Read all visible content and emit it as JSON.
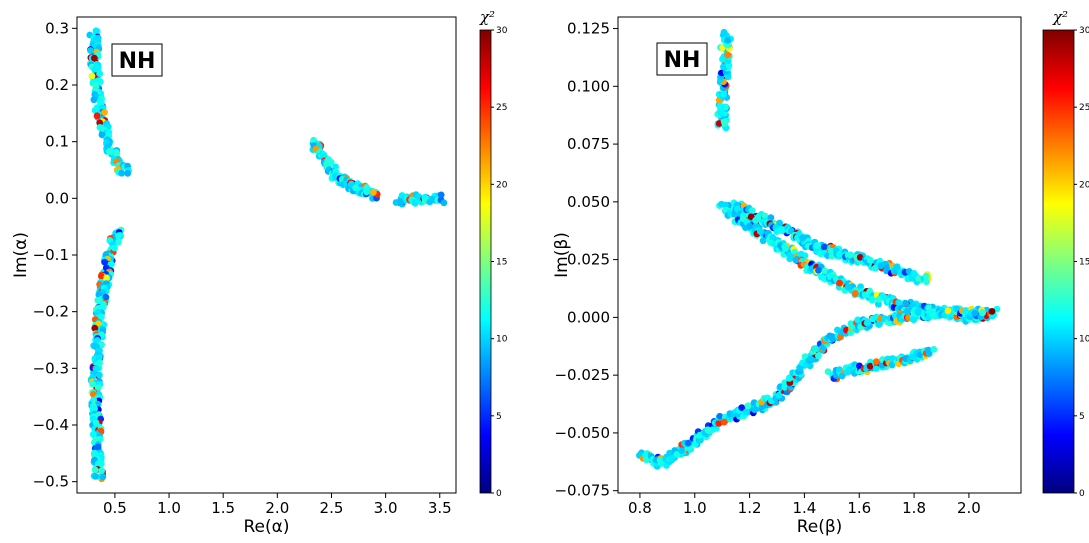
{
  "chart_data": [
    {
      "type": "scatter",
      "title": "",
      "annotation": "NH",
      "xlabel": "Re(α)",
      "ylabel": "Im(α)",
      "xlim": [
        0.15,
        3.65
      ],
      "ylim": [
        -0.52,
        0.32
      ],
      "xticks": [
        "0.5",
        "1.0",
        "1.5",
        "2.0",
        "2.5",
        "3.0",
        "3.5"
      ],
      "xtick_values": [
        0.5,
        1.0,
        1.5,
        2.0,
        2.5,
        3.0,
        3.5
      ],
      "yticks": [
        "0.3",
        "0.2",
        "0.1",
        "0.0",
        "−0.1",
        "−0.2",
        "−0.3",
        "−0.4",
        "−0.5"
      ],
      "ytick_values": [
        0.3,
        0.2,
        0.1,
        0.0,
        -0.1,
        -0.2,
        -0.3,
        -0.4,
        -0.5
      ],
      "grid": false,
      "colormap": "jet",
      "color_variable": "χ²",
      "clim": [
        0,
        30
      ],
      "colorbar_ticks": [
        "30",
        "25",
        "20",
        "15",
        "10",
        "5",
        "0"
      ],
      "colorbar_tick_values": [
        30,
        25,
        20,
        15,
        10,
        5,
        0
      ],
      "clusters": [
        {
          "name": "upper-left arc",
          "path": [
            [
              0.31,
              0.295
            ],
            [
              0.31,
              0.24
            ],
            [
              0.33,
              0.19
            ],
            [
              0.37,
              0.14
            ],
            [
              0.43,
              0.1
            ],
            [
              0.52,
              0.065
            ],
            [
              0.6,
              0.045
            ]
          ]
        },
        {
          "name": "lower-left arc",
          "path": [
            [
              0.55,
              -0.06
            ],
            [
              0.48,
              -0.08
            ],
            [
              0.43,
              -0.12
            ],
            [
              0.38,
              -0.18
            ],
            [
              0.34,
              -0.25
            ],
            [
              0.32,
              -0.32
            ],
            [
              0.33,
              -0.4
            ],
            [
              0.35,
              -0.495
            ]
          ]
        },
        {
          "name": "middle arc",
          "path": [
            [
              2.34,
              0.1
            ],
            [
              2.45,
              0.065
            ],
            [
              2.56,
              0.035
            ],
            [
              2.7,
              0.02
            ],
            [
              2.85,
              0.01
            ],
            [
              2.92,
              0.005
            ]
          ]
        },
        {
          "name": "right band",
          "path": [
            [
              3.12,
              -0.004
            ],
            [
              3.3,
              -0.001
            ],
            [
              3.52,
              0.0
            ]
          ]
        }
      ]
    },
    {
      "type": "scatter",
      "title": "",
      "annotation": "NH",
      "xlabel": "Re(β)",
      "ylabel": "Im(β)",
      "xlim": [
        0.72,
        2.19
      ],
      "ylim": [
        -0.076,
        0.13
      ],
      "xticks": [
        "0.8",
        "1.0",
        "1.2",
        "1.4",
        "1.6",
        "1.8",
        "2.0"
      ],
      "xtick_values": [
        0.8,
        1.0,
        1.2,
        1.4,
        1.6,
        1.8,
        2.0
      ],
      "yticks": [
        "0.125",
        "0.100",
        "0.075",
        "0.050",
        "0.025",
        "0.000",
        "−0.025",
        "−0.050",
        "−0.075"
      ],
      "ytick_values": [
        0.125,
        0.1,
        0.075,
        0.05,
        0.025,
        0.0,
        -0.025,
        -0.05,
        -0.075
      ],
      "grid": false,
      "colormap": "jet",
      "color_variable": "χ²",
      "clim": [
        0,
        30
      ],
      "colorbar_ticks": [
        "30",
        "25",
        "20",
        "15",
        "10",
        "5",
        "0"
      ],
      "colorbar_tick_values": [
        30,
        25,
        20,
        15,
        10,
        5,
        0
      ],
      "clusters": [
        {
          "name": "top cluster",
          "path": [
            [
              1.1,
              0.083
            ],
            [
              1.1,
              0.095
            ],
            [
              1.11,
              0.105
            ],
            [
              1.11,
              0.115
            ],
            [
              1.12,
              0.122
            ]
          ]
        },
        {
          "name": "upper-left band",
          "path": [
            [
              1.1,
              0.048
            ],
            [
              1.2,
              0.04
            ],
            [
              1.32,
              0.03
            ],
            [
              1.45,
              0.02
            ],
            [
              1.58,
              0.012
            ],
            [
              1.72,
              0.006
            ],
            [
              1.85,
              0.003
            ],
            [
              2.0,
              0.0
            ],
            [
              2.1,
              0.002
            ]
          ]
        },
        {
          "name": "upper spur",
          "path": [
            [
              1.15,
              0.048
            ],
            [
              1.3,
              0.04
            ],
            [
              1.45,
              0.03
            ],
            [
              1.6,
              0.025
            ],
            [
              1.75,
              0.02
            ],
            [
              1.85,
              0.016
            ]
          ]
        },
        {
          "name": "lower-left band",
          "path": [
            [
              0.81,
              -0.06
            ],
            [
              0.88,
              -0.063
            ],
            [
              0.98,
              -0.055
            ],
            [
              1.08,
              -0.045
            ],
            [
              1.2,
              -0.04
            ],
            [
              1.3,
              -0.035
            ],
            [
              1.38,
              -0.023
            ],
            [
              1.48,
              -0.01
            ],
            [
              1.6,
              -0.003
            ],
            [
              1.75,
              0.0
            ],
            [
              1.9,
              0.002
            ],
            [
              2.05,
              0.002
            ]
          ]
        },
        {
          "name": "lower spur",
          "path": [
            [
              1.5,
              -0.025
            ],
            [
              1.6,
              -0.022
            ],
            [
              1.7,
              -0.02
            ],
            [
              1.8,
              -0.017
            ],
            [
              1.86,
              -0.015
            ]
          ]
        }
      ]
    }
  ]
}
